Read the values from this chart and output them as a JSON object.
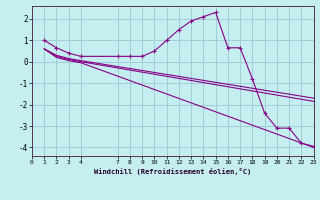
{
  "xlabel": "Windchill (Refroidissement éolien,°C)",
  "bg_color": "#c4eef0",
  "grid_color": "#a0ccd4",
  "line_color": "#880088",
  "xlim": [
    0,
    23
  ],
  "ylim": [
    -4.4,
    2.6
  ],
  "xticks": [
    0,
    1,
    2,
    3,
    4,
    7,
    8,
    9,
    10,
    11,
    12,
    13,
    14,
    15,
    16,
    17,
    18,
    19,
    20,
    21,
    22,
    23
  ],
  "yticks": [
    -4,
    -3,
    -2,
    -1,
    0,
    1,
    2
  ],
  "lines": [
    {
      "x": [
        1,
        2,
        3,
        4,
        7,
        8,
        9,
        10,
        11,
        12,
        13,
        14,
        15,
        16,
        17,
        18,
        19,
        20,
        21,
        22,
        23
      ],
      "y": [
        1.0,
        0.65,
        0.4,
        0.25,
        0.25,
        0.25,
        0.25,
        0.5,
        1.0,
        1.5,
        1.9,
        2.1,
        2.3,
        0.65,
        0.65,
        -0.8,
        -2.4,
        -3.1,
        -3.1,
        -3.8,
        -3.95
      ],
      "marker": "+"
    },
    {
      "x": [
        1,
        2,
        3,
        4,
        23
      ],
      "y": [
        0.6,
        0.3,
        0.15,
        0.05,
        -1.7
      ],
      "marker": null
    },
    {
      "x": [
        1,
        2,
        3,
        4,
        23
      ],
      "y": [
        0.6,
        0.25,
        0.1,
        0.0,
        -1.85
      ],
      "marker": null
    },
    {
      "x": [
        1,
        2,
        3,
        4,
        23
      ],
      "y": [
        0.6,
        0.2,
        0.05,
        -0.05,
        -4.0
      ],
      "marker": null
    }
  ]
}
